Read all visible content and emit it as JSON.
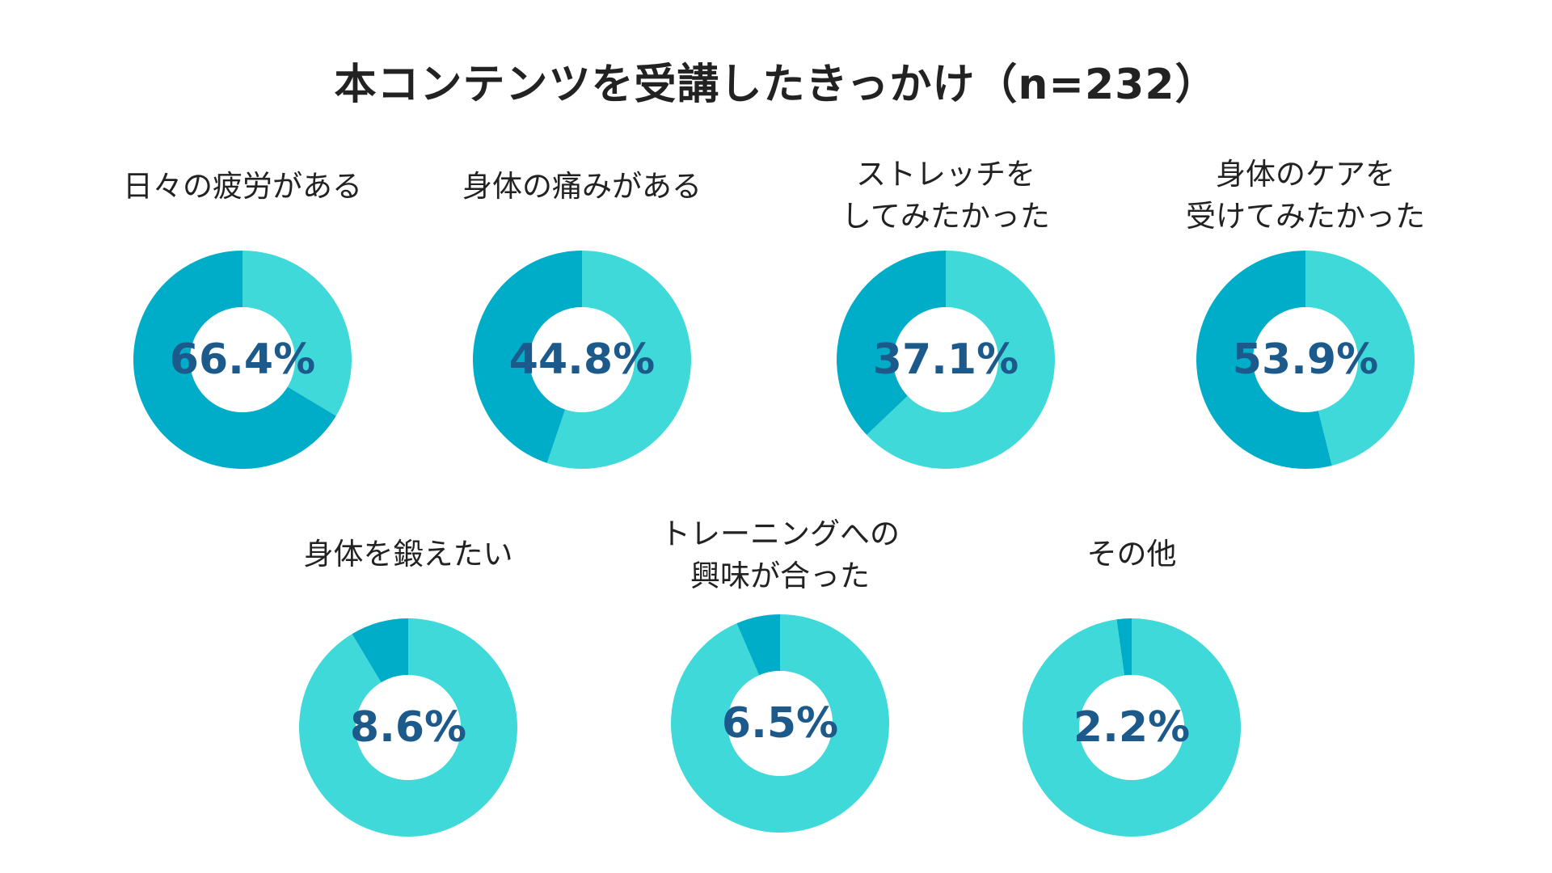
{
  "title": "本コンテンツを受講したきっかけ（n=232）",
  "colors": {
    "selected": "#00adc9",
    "rest": "#40d9d9",
    "value_text": "#1d5a8c",
    "hole": "#ffffff"
  },
  "chart_data": {
    "type": "pie",
    "title": "本コンテンツを受講したきっかけ（n=232）",
    "unit": "%",
    "charts": [
      {
        "label_lines": [
          "日々の疲労がある"
        ],
        "value": 66.4,
        "value_label": "66.4%"
      },
      {
        "label_lines": [
          "身体の痛みがある"
        ],
        "value": 44.8,
        "value_label": "44.8%"
      },
      {
        "label_lines": [
          "ストレッチを",
          "してみたかった"
        ],
        "value": 37.1,
        "value_label": "37.1%"
      },
      {
        "label_lines": [
          "身体のケアを",
          "受けてみたかった"
        ],
        "value": 53.9,
        "value_label": "53.9%"
      },
      {
        "label_lines": [
          "身体を鍛えたい"
        ],
        "value": 8.6,
        "value_label": "8.6%"
      },
      {
        "label_lines": [
          "トレーニングへの",
          "興味が合った"
        ],
        "value": 6.5,
        "value_label": "6.5%"
      },
      {
        "label_lines": [
          "その他"
        ],
        "value": 2.2,
        "value_label": "2.2%"
      }
    ]
  }
}
